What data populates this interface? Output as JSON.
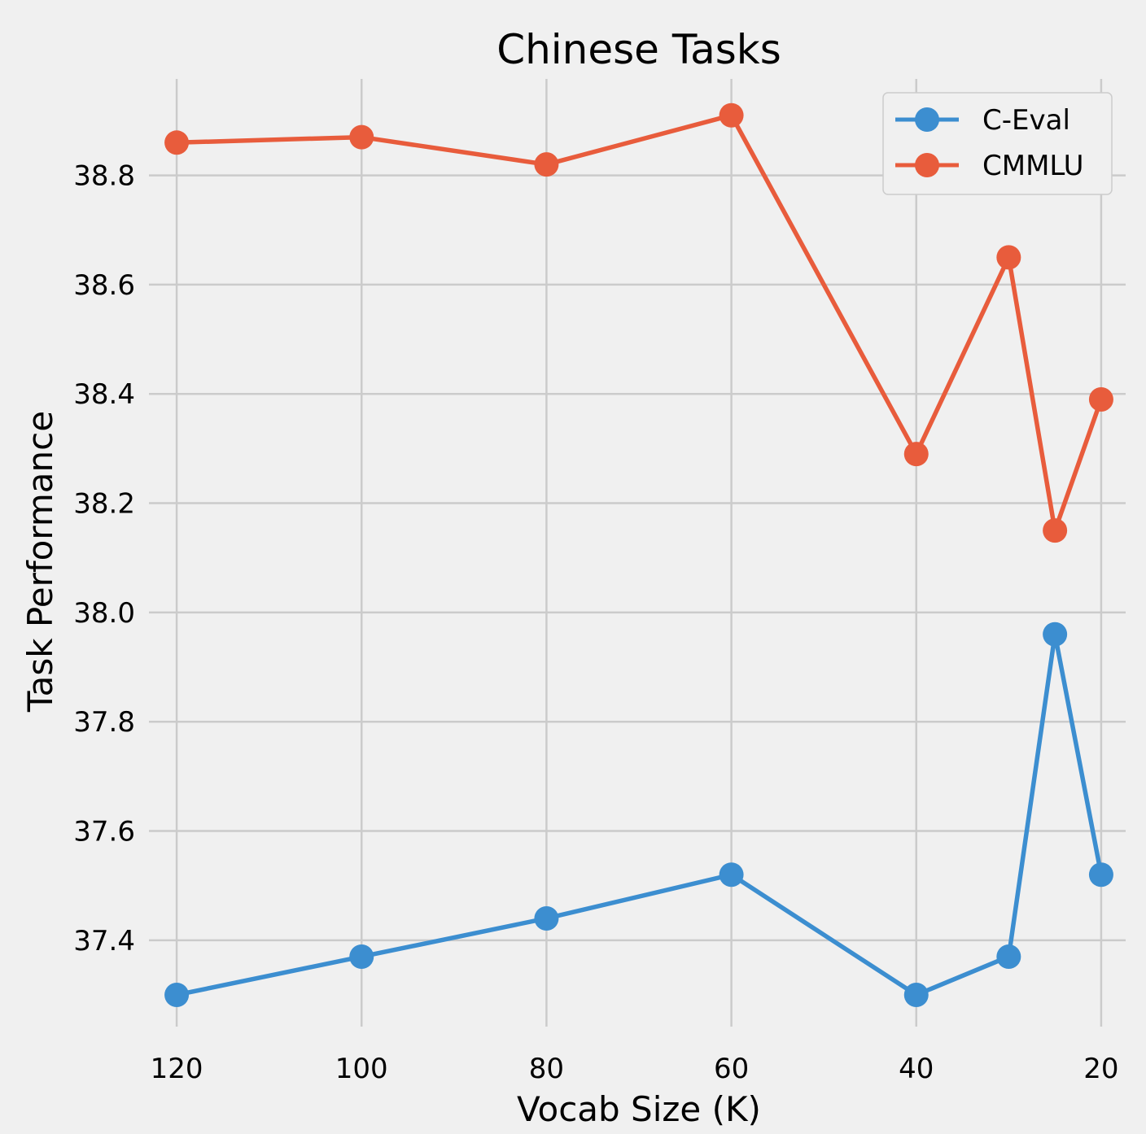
{
  "chart_data": {
    "type": "line",
    "title": "Chinese Tasks",
    "xlabel": "Vocab Size (K)",
    "ylabel": "Task Performance",
    "x": [
      120,
      100,
      80,
      60,
      40,
      30,
      25,
      20
    ],
    "x_ticks": [
      120,
      100,
      80,
      60,
      40,
      20
    ],
    "y_ticks": [
      "37.4",
      "37.6",
      "37.8",
      "38.0",
      "38.2",
      "38.4",
      "38.6",
      "38.8"
    ],
    "xlim": [
      123,
      17
    ],
    "x_reversed": true,
    "ylim": [
      37.23,
      38.99
    ],
    "grid": true,
    "legend_position": "top-right",
    "series": [
      {
        "name": "C-Eval",
        "color": "#3c8ed0",
        "values": [
          37.3,
          37.37,
          37.44,
          37.52,
          37.3,
          37.37,
          37.96,
          37.52
        ]
      },
      {
        "name": "CMMLU",
        "color": "#e85c3c",
        "values": [
          38.86,
          38.87,
          38.82,
          38.91,
          38.29,
          38.65,
          38.15,
          38.39
        ]
      }
    ]
  }
}
